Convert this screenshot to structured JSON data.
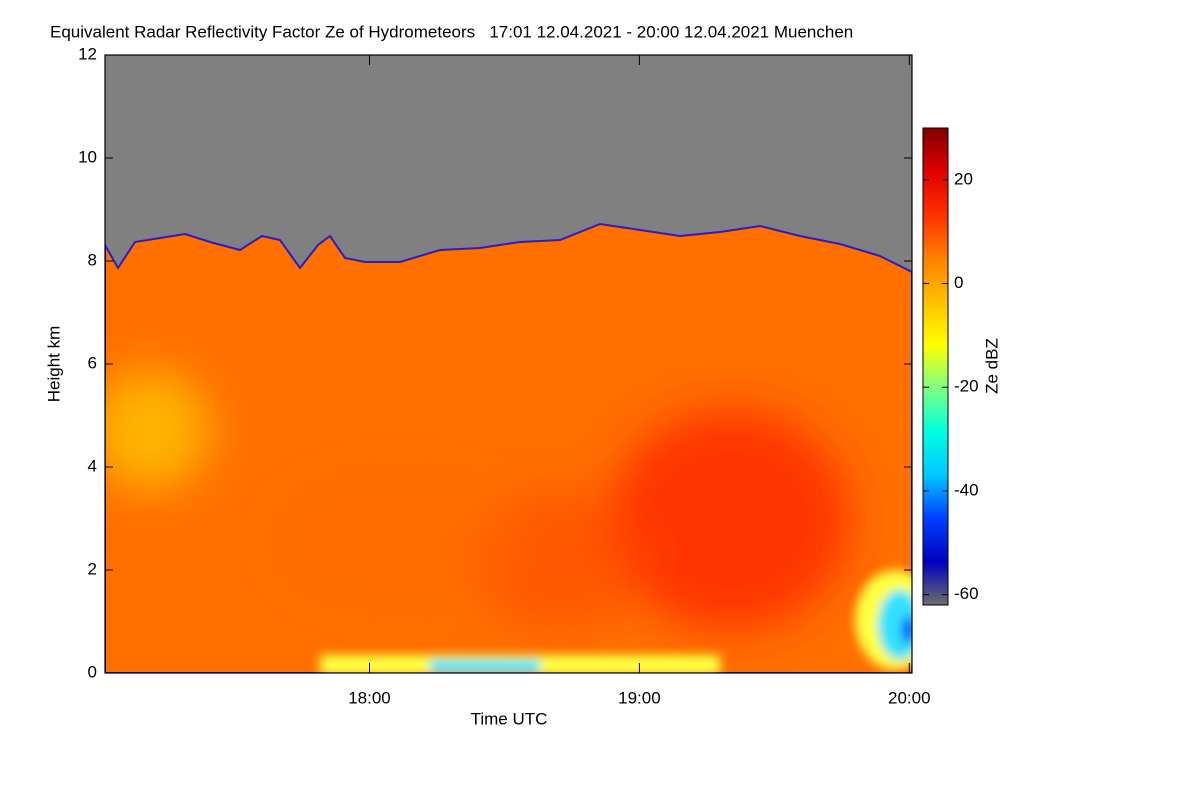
{
  "chart_data": {
    "type": "heatmap",
    "title": "Equivalent Radar Reflectivity Factor Ze of Hydrometeors   17:01 12.04.2021 - 20:00 12.04.2021 Muenchen",
    "x_label": "Time UTC",
    "y_label": "Height km",
    "colorbar_label": "Ze dBZ",
    "xlim": [
      17.02,
      20.01
    ],
    "xticks": [
      {
        "value": 18,
        "label": "18:00"
      },
      {
        "value": 19,
        "label": "19:00"
      },
      {
        "value": 20,
        "label": "20:00"
      }
    ],
    "ylim": [
      0,
      12
    ],
    "yticks": [
      0,
      2,
      4,
      6,
      8,
      10,
      12
    ],
    "clim": [
      -62,
      30
    ],
    "cticks": [
      -60,
      -40,
      -20,
      0,
      20
    ],
    "colormap": [
      "#6e6e6e",
      "#0000c0",
      "#0040ff",
      "#00c8ff",
      "#00ffe0",
      "#80ff80",
      "#ffff00",
      "#ffc000",
      "#ff8000",
      "#ff3000",
      "#e00000",
      "#800000"
    ],
    "missing_color": "#808080"
  }
}
